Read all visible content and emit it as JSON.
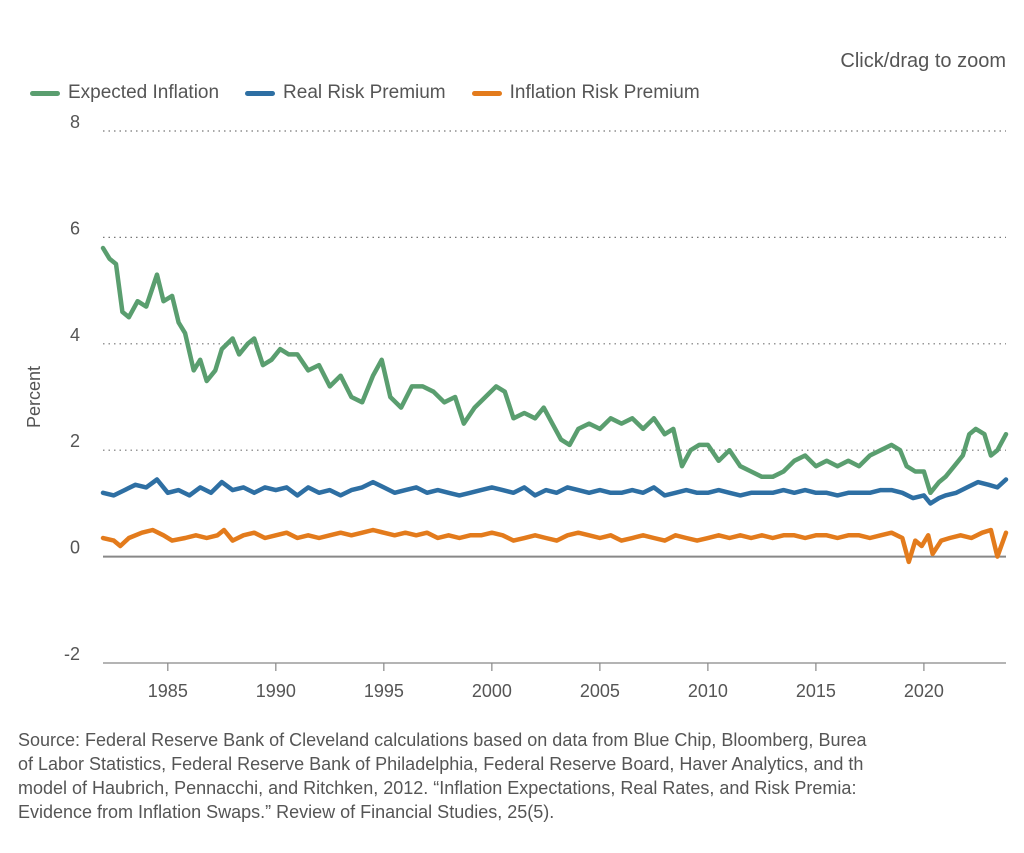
{
  "zoom_hint": "Click/drag to zoom",
  "source_note": "Source: Federal Reserve Bank of Cleveland calculations based on data from Blue Chip, Bloomberg, Burea\nof Labor Statistics, Federal Reserve Bank of Philadelphia, Federal Reserve Board, Haver Analytics, and th\nmodel of Haubrich, Pennacchi, and Ritchken, 2012. “Inflation Expectations, Real Rates, and Risk Premia:\nEvidence from Inflation Swaps.” Review of Financial Studies, 25(5).",
  "chart_data": {
    "type": "line",
    "title": "",
    "xlabel": "",
    "ylabel": "Percent",
    "xlim": [
      1982.0,
      2023.8
    ],
    "ylim": [
      -2,
      8
    ],
    "x_ticks": [
      1985,
      1990,
      1995,
      2000,
      2005,
      2010,
      2015,
      2020
    ],
    "y_ticks": [
      -2,
      0,
      2,
      4,
      6,
      8
    ],
    "grid": "horizontal dotted",
    "legend_position": "top-left",
    "series": [
      {
        "name": "Expected Inflation",
        "color": "#5a9e6f",
        "points": [
          [
            1982.0,
            5.8
          ],
          [
            1982.3,
            5.6
          ],
          [
            1982.6,
            5.5
          ],
          [
            1982.9,
            4.6
          ],
          [
            1983.2,
            4.5
          ],
          [
            1983.6,
            4.8
          ],
          [
            1984.0,
            4.7
          ],
          [
            1984.5,
            5.3
          ],
          [
            1984.8,
            4.8
          ],
          [
            1985.2,
            4.9
          ],
          [
            1985.5,
            4.4
          ],
          [
            1985.8,
            4.2
          ],
          [
            1986.2,
            3.5
          ],
          [
            1986.5,
            3.7
          ],
          [
            1986.8,
            3.3
          ],
          [
            1987.2,
            3.5
          ],
          [
            1987.5,
            3.9
          ],
          [
            1988.0,
            4.1
          ],
          [
            1988.3,
            3.8
          ],
          [
            1988.7,
            4.0
          ],
          [
            1989.0,
            4.1
          ],
          [
            1989.4,
            3.6
          ],
          [
            1989.8,
            3.7
          ],
          [
            1990.2,
            3.9
          ],
          [
            1990.6,
            3.8
          ],
          [
            1991.0,
            3.8
          ],
          [
            1991.5,
            3.5
          ],
          [
            1992.0,
            3.6
          ],
          [
            1992.5,
            3.2
          ],
          [
            1993.0,
            3.4
          ],
          [
            1993.5,
            3.0
          ],
          [
            1994.0,
            2.9
          ],
          [
            1994.5,
            3.4
          ],
          [
            1994.9,
            3.7
          ],
          [
            1995.3,
            3.0
          ],
          [
            1995.8,
            2.8
          ],
          [
            1996.3,
            3.2
          ],
          [
            1996.8,
            3.2
          ],
          [
            1997.3,
            3.1
          ],
          [
            1997.8,
            2.9
          ],
          [
            1998.3,
            3.0
          ],
          [
            1998.7,
            2.5
          ],
          [
            1999.2,
            2.8
          ],
          [
            1999.7,
            3.0
          ],
          [
            2000.2,
            3.2
          ],
          [
            2000.6,
            3.1
          ],
          [
            2001.0,
            2.6
          ],
          [
            2001.5,
            2.7
          ],
          [
            2002.0,
            2.6
          ],
          [
            2002.4,
            2.8
          ],
          [
            2002.8,
            2.5
          ],
          [
            2003.2,
            2.2
          ],
          [
            2003.6,
            2.1
          ],
          [
            2004.0,
            2.4
          ],
          [
            2004.5,
            2.5
          ],
          [
            2005.0,
            2.4
          ],
          [
            2005.5,
            2.6
          ],
          [
            2006.0,
            2.5
          ],
          [
            2006.5,
            2.6
          ],
          [
            2007.0,
            2.4
          ],
          [
            2007.5,
            2.6
          ],
          [
            2008.0,
            2.3
          ],
          [
            2008.4,
            2.4
          ],
          [
            2008.8,
            1.7
          ],
          [
            2009.2,
            2.0
          ],
          [
            2009.6,
            2.1
          ],
          [
            2010.0,
            2.1
          ],
          [
            2010.5,
            1.8
          ],
          [
            2011.0,
            2.0
          ],
          [
            2011.5,
            1.7
          ],
          [
            2012.0,
            1.6
          ],
          [
            2012.5,
            1.5
          ],
          [
            2013.0,
            1.5
          ],
          [
            2013.5,
            1.6
          ],
          [
            2014.0,
            1.8
          ],
          [
            2014.5,
            1.9
          ],
          [
            2015.0,
            1.7
          ],
          [
            2015.5,
            1.8
          ],
          [
            2016.0,
            1.7
          ],
          [
            2016.5,
            1.8
          ],
          [
            2017.0,
            1.7
          ],
          [
            2017.5,
            1.9
          ],
          [
            2018.0,
            2.0
          ],
          [
            2018.5,
            2.1
          ],
          [
            2018.9,
            2.0
          ],
          [
            2019.2,
            1.7
          ],
          [
            2019.6,
            1.6
          ],
          [
            2020.0,
            1.6
          ],
          [
            2020.3,
            1.2
          ],
          [
            2020.7,
            1.4
          ],
          [
            2021.0,
            1.5
          ],
          [
            2021.4,
            1.7
          ],
          [
            2021.8,
            1.9
          ],
          [
            2022.1,
            2.3
          ],
          [
            2022.4,
            2.4
          ],
          [
            2022.8,
            2.3
          ],
          [
            2023.1,
            1.9
          ],
          [
            2023.4,
            2.0
          ],
          [
            2023.8,
            2.3
          ]
        ]
      },
      {
        "name": "Real Risk Premium",
        "color": "#2e6fa3",
        "points": [
          [
            1982.0,
            1.2
          ],
          [
            1982.5,
            1.15
          ],
          [
            1983.0,
            1.25
          ],
          [
            1983.5,
            1.35
          ],
          [
            1984.0,
            1.3
          ],
          [
            1984.5,
            1.45
          ],
          [
            1985.0,
            1.2
          ],
          [
            1985.5,
            1.25
          ],
          [
            1986.0,
            1.15
          ],
          [
            1986.5,
            1.3
          ],
          [
            1987.0,
            1.2
          ],
          [
            1987.5,
            1.4
          ],
          [
            1988.0,
            1.25
          ],
          [
            1988.5,
            1.3
          ],
          [
            1989.0,
            1.2
          ],
          [
            1989.5,
            1.3
          ],
          [
            1990.0,
            1.25
          ],
          [
            1990.5,
            1.3
          ],
          [
            1991.0,
            1.15
          ],
          [
            1991.5,
            1.3
          ],
          [
            1992.0,
            1.2
          ],
          [
            1992.5,
            1.25
          ],
          [
            1993.0,
            1.15
          ],
          [
            1993.5,
            1.25
          ],
          [
            1994.0,
            1.3
          ],
          [
            1994.5,
            1.4
          ],
          [
            1995.0,
            1.3
          ],
          [
            1995.5,
            1.2
          ],
          [
            1996.0,
            1.25
          ],
          [
            1996.5,
            1.3
          ],
          [
            1997.0,
            1.2
          ],
          [
            1997.5,
            1.25
          ],
          [
            1998.0,
            1.2
          ],
          [
            1998.5,
            1.15
          ],
          [
            1999.0,
            1.2
          ],
          [
            1999.5,
            1.25
          ],
          [
            2000.0,
            1.3
          ],
          [
            2000.5,
            1.25
          ],
          [
            2001.0,
            1.2
          ],
          [
            2001.5,
            1.3
          ],
          [
            2002.0,
            1.15
          ],
          [
            2002.5,
            1.25
          ],
          [
            2003.0,
            1.2
          ],
          [
            2003.5,
            1.3
          ],
          [
            2004.0,
            1.25
          ],
          [
            2004.5,
            1.2
          ],
          [
            2005.0,
            1.25
          ],
          [
            2005.5,
            1.2
          ],
          [
            2006.0,
            1.2
          ],
          [
            2006.5,
            1.25
          ],
          [
            2007.0,
            1.2
          ],
          [
            2007.5,
            1.3
          ],
          [
            2008.0,
            1.15
          ],
          [
            2008.5,
            1.2
          ],
          [
            2009.0,
            1.25
          ],
          [
            2009.5,
            1.2
          ],
          [
            2010.0,
            1.2
          ],
          [
            2010.5,
            1.25
          ],
          [
            2011.0,
            1.2
          ],
          [
            2011.5,
            1.15
          ],
          [
            2012.0,
            1.2
          ],
          [
            2012.5,
            1.2
          ],
          [
            2013.0,
            1.2
          ],
          [
            2013.5,
            1.25
          ],
          [
            2014.0,
            1.2
          ],
          [
            2014.5,
            1.25
          ],
          [
            2015.0,
            1.2
          ],
          [
            2015.5,
            1.2
          ],
          [
            2016.0,
            1.15
          ],
          [
            2016.5,
            1.2
          ],
          [
            2017.0,
            1.2
          ],
          [
            2017.5,
            1.2
          ],
          [
            2018.0,
            1.25
          ],
          [
            2018.5,
            1.25
          ],
          [
            2019.0,
            1.2
          ],
          [
            2019.5,
            1.1
          ],
          [
            2020.0,
            1.15
          ],
          [
            2020.3,
            1.0
          ],
          [
            2020.7,
            1.1
          ],
          [
            2021.0,
            1.15
          ],
          [
            2021.5,
            1.2
          ],
          [
            2022.0,
            1.3
          ],
          [
            2022.5,
            1.4
          ],
          [
            2023.0,
            1.35
          ],
          [
            2023.4,
            1.3
          ],
          [
            2023.8,
            1.45
          ]
        ]
      },
      {
        "name": "Inflation Risk Premium",
        "color": "#e37b1c",
        "points": [
          [
            1982.0,
            0.35
          ],
          [
            1982.5,
            0.3
          ],
          [
            1982.8,
            0.2
          ],
          [
            1983.2,
            0.35
          ],
          [
            1983.8,
            0.45
          ],
          [
            1984.3,
            0.5
          ],
          [
            1984.8,
            0.4
          ],
          [
            1985.2,
            0.3
          ],
          [
            1985.8,
            0.35
          ],
          [
            1986.3,
            0.4
          ],
          [
            1986.8,
            0.35
          ],
          [
            1987.3,
            0.4
          ],
          [
            1987.6,
            0.5
          ],
          [
            1988.0,
            0.3
          ],
          [
            1988.5,
            0.4
          ],
          [
            1989.0,
            0.45
          ],
          [
            1989.5,
            0.35
          ],
          [
            1990.0,
            0.4
          ],
          [
            1990.5,
            0.45
          ],
          [
            1991.0,
            0.35
          ],
          [
            1991.5,
            0.4
          ],
          [
            1992.0,
            0.35
          ],
          [
            1992.5,
            0.4
          ],
          [
            1993.0,
            0.45
          ],
          [
            1993.5,
            0.4
          ],
          [
            1994.0,
            0.45
          ],
          [
            1994.5,
            0.5
          ],
          [
            1995.0,
            0.45
          ],
          [
            1995.5,
            0.4
          ],
          [
            1996.0,
            0.45
          ],
          [
            1996.5,
            0.4
          ],
          [
            1997.0,
            0.45
          ],
          [
            1997.5,
            0.35
          ],
          [
            1998.0,
            0.4
          ],
          [
            1998.5,
            0.35
          ],
          [
            1999.0,
            0.4
          ],
          [
            1999.5,
            0.4
          ],
          [
            2000.0,
            0.45
          ],
          [
            2000.5,
            0.4
          ],
          [
            2001.0,
            0.3
          ],
          [
            2001.5,
            0.35
          ],
          [
            2002.0,
            0.4
          ],
          [
            2002.5,
            0.35
          ],
          [
            2003.0,
            0.3
          ],
          [
            2003.5,
            0.4
          ],
          [
            2004.0,
            0.45
          ],
          [
            2004.5,
            0.4
          ],
          [
            2005.0,
            0.35
          ],
          [
            2005.5,
            0.4
          ],
          [
            2006.0,
            0.3
          ],
          [
            2006.5,
            0.35
          ],
          [
            2007.0,
            0.4
          ],
          [
            2007.5,
            0.35
          ],
          [
            2008.0,
            0.3
          ],
          [
            2008.5,
            0.4
          ],
          [
            2009.0,
            0.35
          ],
          [
            2009.5,
            0.3
          ],
          [
            2010.0,
            0.35
          ],
          [
            2010.5,
            0.4
          ],
          [
            2011.0,
            0.35
          ],
          [
            2011.5,
            0.4
          ],
          [
            2012.0,
            0.35
          ],
          [
            2012.5,
            0.4
          ],
          [
            2013.0,
            0.35
          ],
          [
            2013.5,
            0.4
          ],
          [
            2014.0,
            0.4
          ],
          [
            2014.5,
            0.35
          ],
          [
            2015.0,
            0.4
          ],
          [
            2015.5,
            0.4
          ],
          [
            2016.0,
            0.35
          ],
          [
            2016.5,
            0.4
          ],
          [
            2017.0,
            0.4
          ],
          [
            2017.5,
            0.35
          ],
          [
            2018.0,
            0.4
          ],
          [
            2018.5,
            0.45
          ],
          [
            2019.0,
            0.35
          ],
          [
            2019.3,
            -0.1
          ],
          [
            2019.6,
            0.3
          ],
          [
            2019.9,
            0.2
          ],
          [
            2020.2,
            0.4
          ],
          [
            2020.4,
            0.05
          ],
          [
            2020.8,
            0.3
          ],
          [
            2021.2,
            0.35
          ],
          [
            2021.7,
            0.4
          ],
          [
            2022.2,
            0.35
          ],
          [
            2022.7,
            0.45
          ],
          [
            2023.1,
            0.5
          ],
          [
            2023.4,
            0.0
          ],
          [
            2023.8,
            0.45
          ]
        ]
      }
    ]
  }
}
